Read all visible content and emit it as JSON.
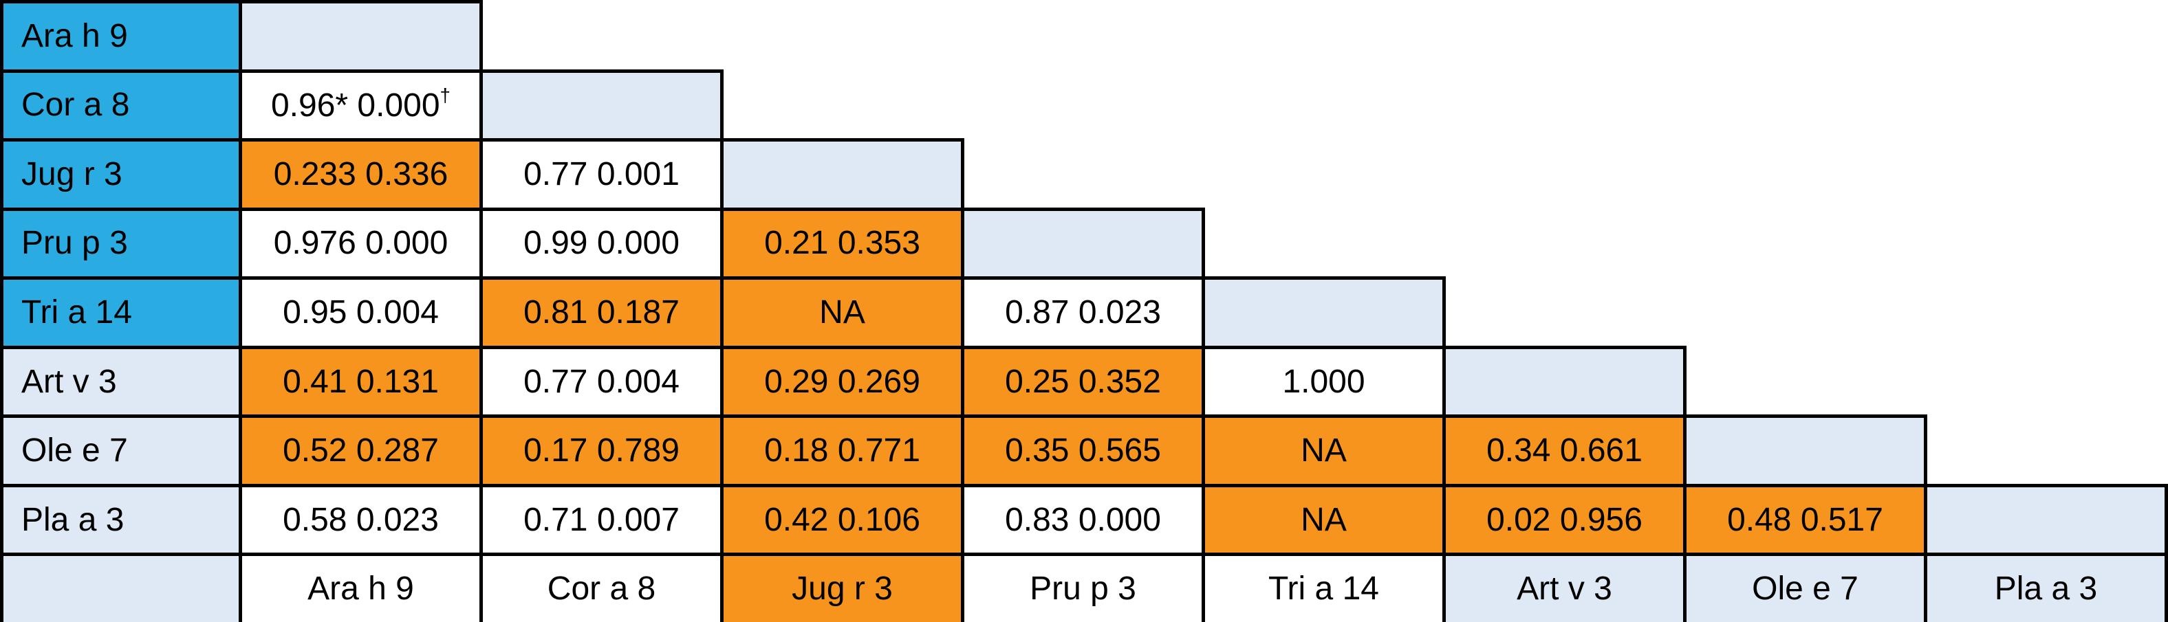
{
  "palette": {
    "cyan": "#2AABE2",
    "orange": "#F7941E",
    "light_blue": "#DEE9F5",
    "white": "#FFFFFF",
    "border": "#000000",
    "text": "#000000"
  },
  "chart_data": {
    "type": "table",
    "layout": "lower-triangular-matrix",
    "grid": "on",
    "row_labels": [
      "Ara h 9",
      "Cor a 8",
      "Jug r 3",
      "Pru p 3",
      "Tri a 14",
      "Art v 3",
      "Ole e 7",
      "Pla a 3"
    ],
    "col_labels": [
      "Ara h 9",
      "Cor a 8",
      "Jug r 3",
      "Pru p 3",
      "Tri a 14",
      "Art v 3",
      "Ole e 7",
      "Pla a 3"
    ],
    "row_header_bg": [
      "cyan",
      "cyan",
      "cyan",
      "cyan",
      "cyan",
      "lightblue",
      "lightblue",
      "lightblue"
    ],
    "col_header_bg": [
      "white",
      "white",
      "orange",
      "white",
      "white",
      "lightblue",
      "lightblue",
      "lightblue"
    ],
    "diagonal_bg": "lightblue",
    "cells": [
      [],
      [
        {
          "text": "0.96* 0.000",
          "sup": "†",
          "bg": "white"
        }
      ],
      [
        {
          "text": "0.233 0.336",
          "bg": "orange"
        },
        {
          "text": "0.77 0.001",
          "bg": "white"
        }
      ],
      [
        {
          "text": "0.976 0.000",
          "bg": "white"
        },
        {
          "text": "0.99 0.000",
          "bg": "white"
        },
        {
          "text": "0.21 0.353",
          "bg": "orange"
        }
      ],
      [
        {
          "text": "0.95 0.004",
          "bg": "white"
        },
        {
          "text": "0.81 0.187",
          "bg": "orange"
        },
        {
          "text": "NA",
          "bg": "orange"
        },
        {
          "text": "0.87 0.023",
          "bg": "white"
        }
      ],
      [
        {
          "text": "0.41 0.131",
          "bg": "orange"
        },
        {
          "text": "0.77 0.004",
          "bg": "white"
        },
        {
          "text": "0.29 0.269",
          "bg": "orange"
        },
        {
          "text": "0.25 0.352",
          "bg": "orange"
        },
        {
          "text": "1.000",
          "bg": "white"
        }
      ],
      [
        {
          "text": "0.52 0.287",
          "bg": "orange"
        },
        {
          "text": "0.17 0.789",
          "bg": "orange"
        },
        {
          "text": "0.18 0.771",
          "bg": "orange"
        },
        {
          "text": "0.35 0.565",
          "bg": "orange"
        },
        {
          "text": "NA",
          "bg": "orange"
        },
        {
          "text": "0.34 0.661",
          "bg": "orange"
        }
      ],
      [
        {
          "text": "0.58 0.023",
          "bg": "white"
        },
        {
          "text": "0.71 0.007",
          "bg": "white"
        },
        {
          "text": "0.42 0.106",
          "bg": "orange"
        },
        {
          "text": "0.83 0.000",
          "bg": "white"
        },
        {
          "text": "NA",
          "bg": "orange"
        },
        {
          "text": "0.02 0.956",
          "bg": "orange"
        },
        {
          "text": "0.48 0.517",
          "bg": "orange"
        }
      ]
    ]
  }
}
